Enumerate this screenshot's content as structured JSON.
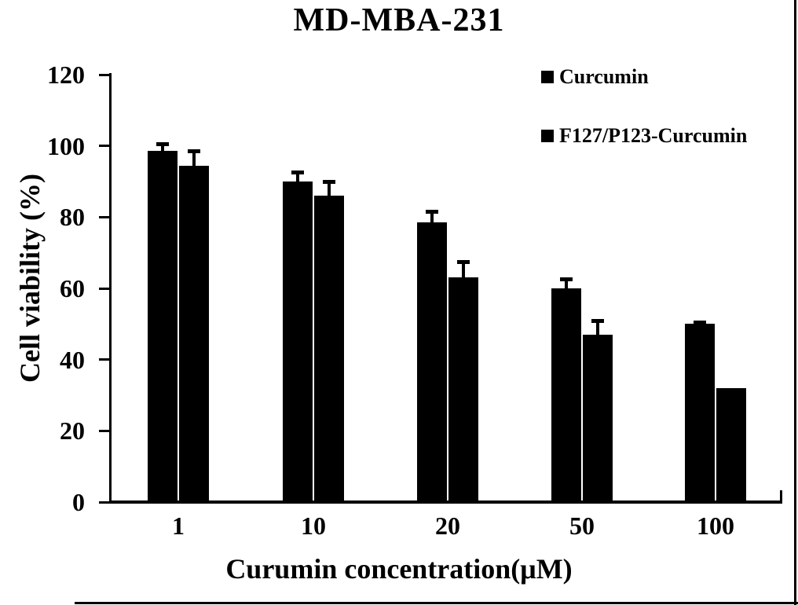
{
  "figure": {
    "background_color": "#ffffff",
    "ink_color": "#000000",
    "border_note": "scan border on right and bottom edges"
  },
  "chart_data": {
    "type": "bar",
    "title": "MD-MBA-231",
    "xlabel": "Curumin concentration(μM)",
    "ylabel": "Cell viability (%)",
    "categories": [
      "1",
      "10",
      "20",
      "50",
      "100"
    ],
    "series": [
      {
        "name": "Curcumin",
        "values": [
          98.5,
          90,
          78.5,
          60,
          50
        ],
        "errors": [
          2.5,
          3,
          3.5,
          3,
          1
        ]
      },
      {
        "name": "F127/P123-Curcumin",
        "values": [
          94.5,
          86,
          63,
          47,
          32
        ],
        "errors": [
          4.5,
          4.5,
          5,
          4.5,
          0
        ]
      }
    ],
    "ylim": [
      0,
      120
    ],
    "yticks": [
      0,
      20,
      40,
      60,
      80,
      100,
      120
    ],
    "bar_color": "#000000",
    "error_bar_color": "#000000",
    "legend_position": "top-right",
    "grid": false
  }
}
